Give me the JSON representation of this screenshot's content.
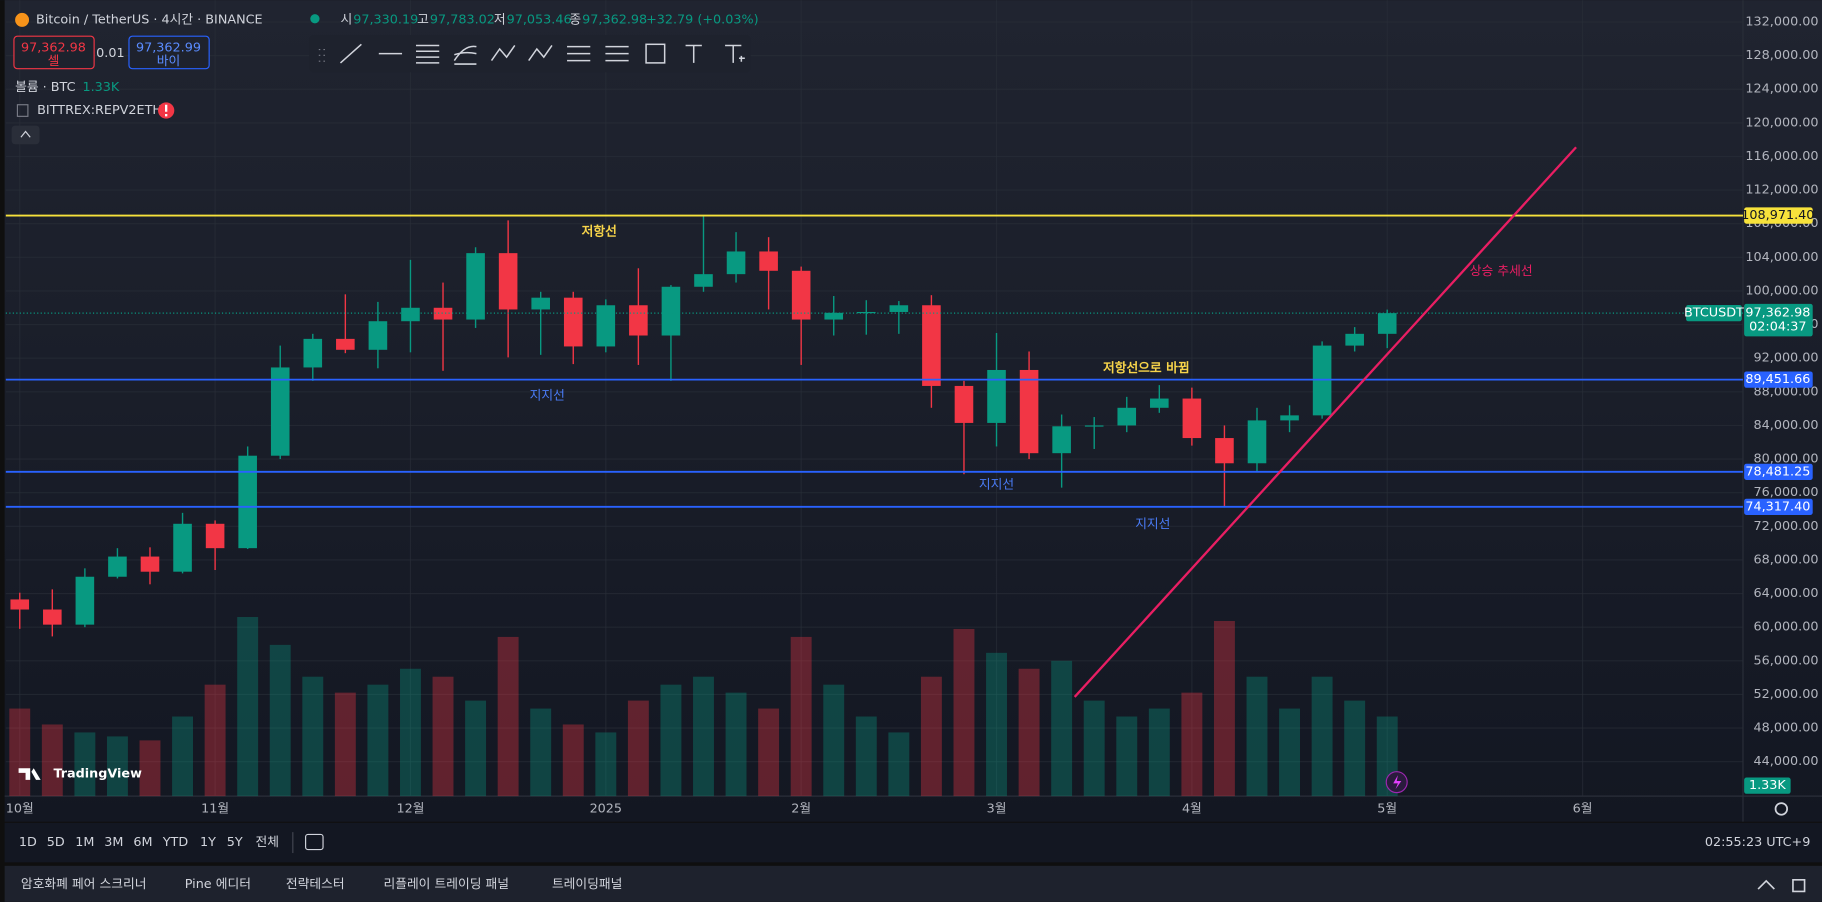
{
  "header": {
    "symbol": "Bitcoin / TetherUS · 4시간 · BINANCE",
    "open_label": "시",
    "open": "97,330.19",
    "high_label": "고",
    "high": "97,783.02",
    "low_label": "저",
    "low": "97,053.46",
    "close_label": "종",
    "close": "97,362.98",
    "change": "+32.79 (+0.03%)"
  },
  "trade": {
    "sell_price": "97,362.98",
    "sell": "셀",
    "quantity": "0.01",
    "buy_price": "97,362.99",
    "buy": "바이"
  },
  "compare": "BITTREX:REPV2ETH",
  "brand": "TradingView",
  "chart_data": {
    "type": "candlestick",
    "categories": [
      "10월",
      null,
      null,
      null,
      null,
      null,
      "11월",
      null,
      null,
      null,
      null,
      null,
      "12월",
      null,
      null,
      null,
      null,
      null,
      "2025",
      null,
      null,
      null,
      null,
      null,
      "2월",
      null,
      null,
      null,
      null,
      null,
      "3월",
      null,
      null,
      null,
      null,
      null,
      "4월",
      null,
      null,
      null,
      null,
      null,
      "5월",
      null,
      null,
      null,
      null,
      null,
      "6월",
      null,
      null,
      null,
      null,
      null
    ],
    "series": [
      {
        "name": "BTCUSDT",
        "open": [
          63300,
          62100,
          60300,
          66000,
          68400,
          66600,
          72300,
          69400,
          80400,
          90900,
          94300,
          93000,
          96400,
          98000,
          96600,
          104500,
          97800,
          99200,
          93400,
          98300,
          94700,
          100500,
          102000,
          104700,
          102400,
          96600,
          97400,
          97500,
          98300,
          88700,
          84300,
          90600,
          80700,
          83900,
          84000,
          86100,
          87200,
          82500,
          79500,
          84600,
          85200,
          93500,
          94900,
          null,
          null,
          null,
          null,
          null,
          null,
          null,
          null,
          null,
          null,
          null
        ],
        "high": [
          64100,
          64500,
          67000,
          69400,
          69500,
          73600,
          72700,
          81500,
          93500,
          94900,
          99600,
          98700,
          103700,
          101000,
          105200,
          108400,
          99900,
          99900,
          99000,
          102700,
          100700,
          109000,
          107000,
          106400,
          102900,
          99400,
          98900,
          98800,
          99500,
          89300,
          95000,
          92800,
          85300,
          85000,
          87400,
          88800,
          88500,
          84000,
          86100,
          86400,
          94000,
          95700,
          97783.02,
          null,
          null,
          null,
          null,
          null,
          null,
          null,
          null,
          null,
          null,
          null
        ],
        "low": [
          59800,
          58900,
          60000,
          65800,
          65100,
          66400,
          66800,
          69300,
          80000,
          89300,
          92600,
          90800,
          92700,
          90500,
          95600,
          92100,
          92400,
          91300,
          92700,
          91200,
          89300,
          99900,
          101000,
          97800,
          91200,
          94700,
          94800,
          94900,
          86100,
          78200,
          81500,
          80000,
          76600,
          81200,
          83200,
          85500,
          81600,
          74400,
          78500,
          83200,
          84800,
          92800,
          93200,
          null,
          null,
          null,
          null,
          null,
          null,
          null,
          null,
          null,
          null,
          null
        ],
        "close": [
          62100,
          60300,
          66000,
          68400,
          66600,
          72300,
          69400,
          80400,
          90900,
          94300,
          93000,
          96400,
          98000,
          96600,
          104500,
          97800,
          99200,
          93400,
          98300,
          94700,
          100500,
          102000,
          104700,
          102400,
          96600,
          97400,
          97500,
          98300,
          88700,
          84300,
          90600,
          80700,
          83900,
          84000,
          86100,
          87200,
          82500,
          79500,
          84600,
          85200,
          93500,
          94900,
          97362.98,
          null,
          null,
          null,
          null,
          null,
          null,
          null,
          null,
          null,
          null,
          null
        ]
      }
    ],
    "up_color": "#089981",
    "down_color": "#f23645",
    "volume": {
      "name": "볼륨 · BTC",
      "last_label": "1.33K",
      "axis": "y2",
      "values": [
        22,
        18,
        16,
        15,
        14,
        20,
        28,
        45,
        38,
        30,
        26,
        28,
        32,
        30,
        24,
        40,
        22,
        18,
        16,
        24,
        28,
        30,
        26,
        22,
        40,
        28,
        20,
        16,
        30,
        42,
        36,
        32,
        34,
        24,
        20,
        22,
        26,
        44,
        30,
        22,
        30,
        24,
        20,
        null,
        null,
        null,
        null,
        null,
        null,
        null,
        null,
        null,
        null,
        null
      ]
    },
    "ylim": [
      39900,
      134600
    ],
    "y2lim": [
      0,
      200
    ],
    "yticks": [
      {
        "value": 44000,
        "label": "44,000.00"
      },
      {
        "value": 48000,
        "label": "48,000.00"
      },
      {
        "value": 52000,
        "label": "52,000.00"
      },
      {
        "value": 56000,
        "label": "56,000.00"
      },
      {
        "value": 60000,
        "label": "60,000.00"
      },
      {
        "value": 64000,
        "label": "64,000.00"
      },
      {
        "value": 68000,
        "label": "68,000.00"
      },
      {
        "value": 72000,
        "label": "72,000.00"
      },
      {
        "value": 76000,
        "label": "76,000.00"
      },
      {
        "value": 80000,
        "label": "80,000.00"
      },
      {
        "value": 84000,
        "label": "84,000.00"
      },
      {
        "value": 88000,
        "label": "88,000.00"
      },
      {
        "value": 92000,
        "label": "92,000.00"
      },
      {
        "value": 96000,
        "label": "96,000.00"
      },
      {
        "value": 100000,
        "label": "100,000.00"
      },
      {
        "value": 104000,
        "label": "104,000.00"
      },
      {
        "value": 108000,
        "label": "108,000.00"
      },
      {
        "value": 112000,
        "label": "112,000.00"
      },
      {
        "value": 116000,
        "label": "116,000.00"
      },
      {
        "value": 120000,
        "label": "120,000.00"
      },
      {
        "value": 124000,
        "label": "124,000.00"
      },
      {
        "value": 128000,
        "label": "128,000.00"
      },
      {
        "value": 132000,
        "label": "132,000.00"
      }
    ],
    "grid": true,
    "last_price": {
      "value": 97362.98,
      "label": "97,362.98",
      "countdown": "02:04:37"
    },
    "hlines": [
      {
        "value": 108971.4,
        "label": "108,971.40",
        "color": "#f7e23b"
      },
      {
        "value": 89451.66,
        "label": "89,451.66",
        "color": "#2962ff"
      },
      {
        "value": 78481.25,
        "label": "78,481.25",
        "color": "#2962ff"
      },
      {
        "value": 74317.4,
        "label": "74,317.40",
        "color": "#2962ff"
      }
    ],
    "trendline": {
      "color": "#e91e63",
      "positions": [
        32.4,
        47.8
      ],
      "values": [
        51700,
        117100
      ]
    },
    "annotations": [
      {
        "text": "저항선",
        "position": 17.8,
        "value": 107000,
        "color": "#f7d44a"
      },
      {
        "text": "지지선",
        "position": 16.2,
        "value": 87500,
        "color": "#4a7cf7"
      },
      {
        "text": "저항선으로 바뀜",
        "position": 34.6,
        "value": 90800,
        "color": "#f7d44a"
      },
      {
        "text": "지지선",
        "position": 30.0,
        "value": 76900,
        "color": "#4a7cf7"
      },
      {
        "text": "지지선",
        "position": 34.8,
        "value": 72200,
        "color": "#4a7cf7"
      },
      {
        "text": "상승 추세선",
        "position": 45.5,
        "value": 102300,
        "color": "#e91e63"
      }
    ]
  },
  "timeframes": [
    "1D",
    "5D",
    "1M",
    "3M",
    "6M",
    "YTD",
    "1Y",
    "5Y",
    "전체"
  ],
  "clock": "02:55:23 UTC+9",
  "panel_tabs": [
    "암호화폐 페어 스크리너",
    "Pine 에디터",
    "전략테스터",
    "리플레이 트레이딩 패널",
    "트레이딩패널"
  ]
}
